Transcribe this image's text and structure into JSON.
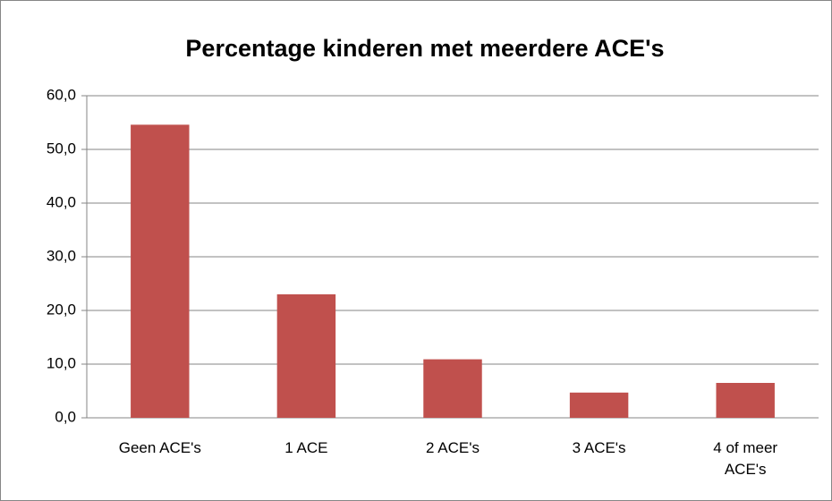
{
  "chart_data": {
    "type": "bar",
    "title": "Percentage kinderen met meerdere ACE's",
    "categories": [
      "Geen ACE's",
      "1 ACE",
      "2 ACE's",
      "3 ACE's",
      "4 of meer ACE's"
    ],
    "values": [
      54.6,
      23.0,
      10.9,
      4.7,
      6.5
    ],
    "color": "#c0504d",
    "ylim": [
      0,
      60
    ],
    "yticks": [
      {
        "value": 0,
        "label": "0,0"
      },
      {
        "value": 10,
        "label": "10,0"
      },
      {
        "value": 20,
        "label": "20,0"
      },
      {
        "value": 30,
        "label": "30,0"
      },
      {
        "value": 40,
        "label": "40,0"
      },
      {
        "value": 50,
        "label": "50,0"
      },
      {
        "value": 60,
        "label": "60,0"
      }
    ],
    "grid": true
  }
}
